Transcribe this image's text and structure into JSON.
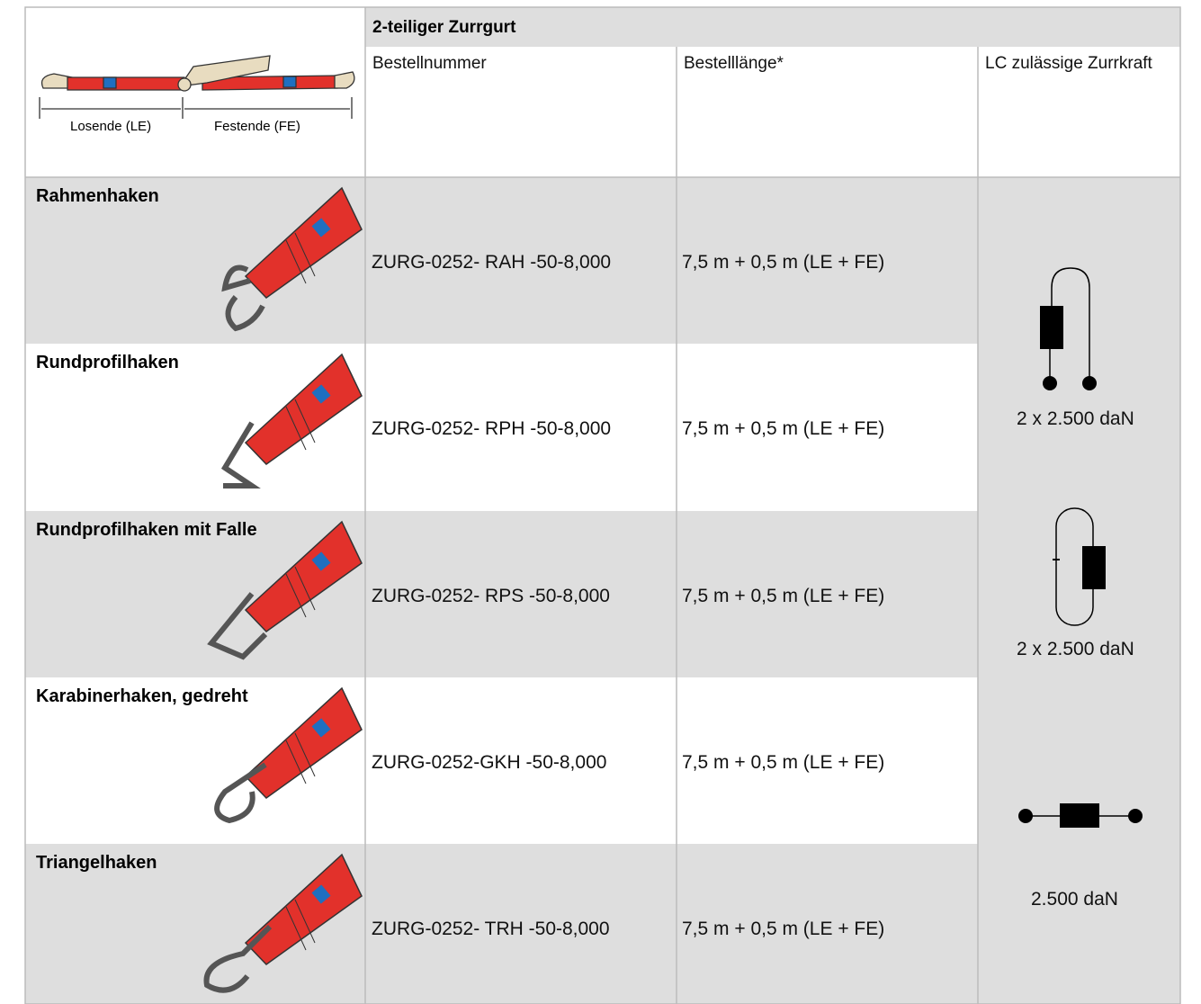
{
  "header": {
    "title": "2-teiliger Zurrgurt",
    "columns": [
      "Bestellnummer",
      "Bestelllänge*",
      "LC zulässige Zurrkraft"
    ],
    "diagram_labels": [
      "Losende (LE)",
      "Festende (FE)"
    ]
  },
  "table": {
    "rows": [
      [
        "Rahmenhaken",
        "ZURG-0252- RAH -50-8,000",
        "7,5 m + 0,5 m (LE + FE)"
      ],
      [
        "Rundprofilhaken",
        "ZURG-0252- RPH -50-8,000",
        "7,5 m + 0,5 m (LE + FE)"
      ],
      [
        "Rundprofilhaken mit Falle",
        "ZURG-0252- RPS -50-8,000",
        "7,5 m + 0,5 m (LE + FE)"
      ],
      [
        "Karabinerhaken, gedreht",
        "ZURG-0252-GKH -50-8,000",
        "7,5 m + 0,5 m (LE + FE)"
      ],
      [
        "Triangelhaken",
        "ZURG-0252- TRH -50-8,000",
        "7,5 m + 0,5 m (LE + FE)"
      ]
    ]
  },
  "lashing_capacity": [
    "2 x 2.500 daN",
    "2 x 2.500 daN",
    "2.500 daN"
  ]
}
